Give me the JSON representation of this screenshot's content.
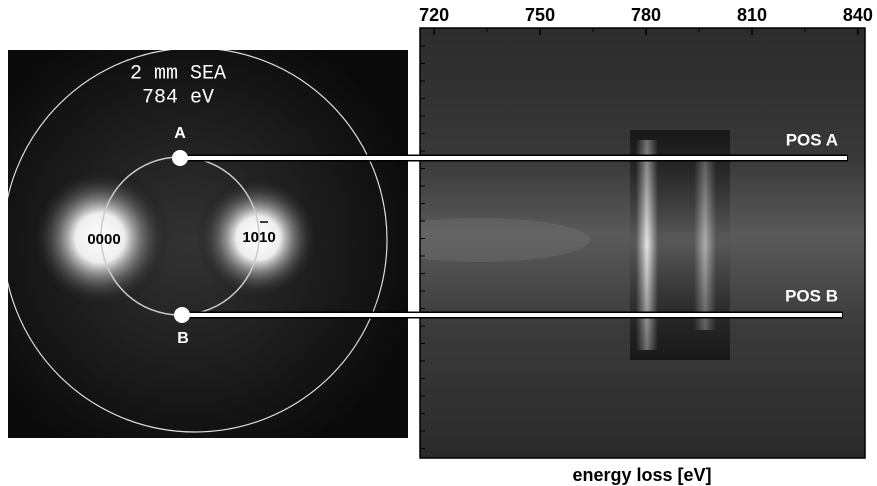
{
  "pattern": {
    "caption": [
      "2 mm SEA",
      "784 eV"
    ],
    "spot_labels": [
      "A",
      "B"
    ],
    "reflections": [
      "0000",
      "1010"
    ]
  },
  "spectrum": {
    "xlim": [
      716,
      842
    ],
    "xticks": [
      720,
      750,
      780,
      810,
      840
    ],
    "xlabel": "energy loss [eV]",
    "positions": [
      "POS A",
      "POS B"
    ]
  }
}
